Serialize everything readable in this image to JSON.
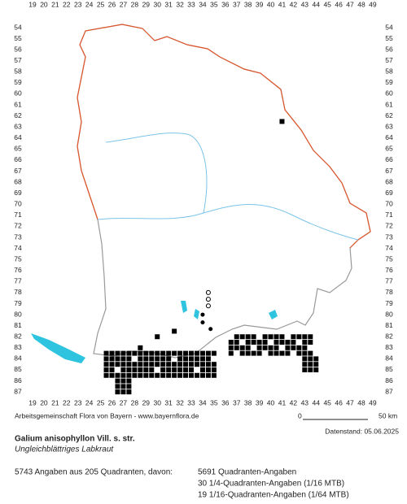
{
  "grid": {
    "columns": [
      19,
      20,
      21,
      22,
      23,
      24,
      25,
      26,
      27,
      28,
      29,
      30,
      31,
      32,
      33,
      34,
      35,
      36,
      37,
      38,
      39,
      40,
      41,
      42,
      43,
      44,
      45,
      46,
      47,
      48,
      49
    ],
    "rows": [
      54,
      55,
      56,
      57,
      58,
      59,
      60,
      61,
      62,
      63,
      64,
      65,
      66,
      67,
      68,
      69,
      70,
      71,
      72,
      73,
      74,
      75,
      76,
      77,
      78,
      79,
      80,
      81,
      82,
      83,
      84,
      85,
      86,
      87
    ]
  },
  "footer": {
    "credit": "Arbeitsgemeinschaft Flora von Bayern - www.bayernflora.de",
    "scale_start": "0",
    "scale_end": "50 km",
    "date": "Datenstand: 05.06.2025"
  },
  "species": {
    "name": "Galium anisophyllon Vill. s. str.",
    "common_name": "Ungleichblättriges Labkraut"
  },
  "stats": {
    "summary": "5743 Angaben aus 205 Quadranten, davon:",
    "lines": [
      "5691 Quadranten-Angaben",
      "30 1/4-Quadranten-Angaben (1/16 MTB)",
      "19 1/16-Quadranten-Angaben (1/64 MTB)"
    ]
  }
}
